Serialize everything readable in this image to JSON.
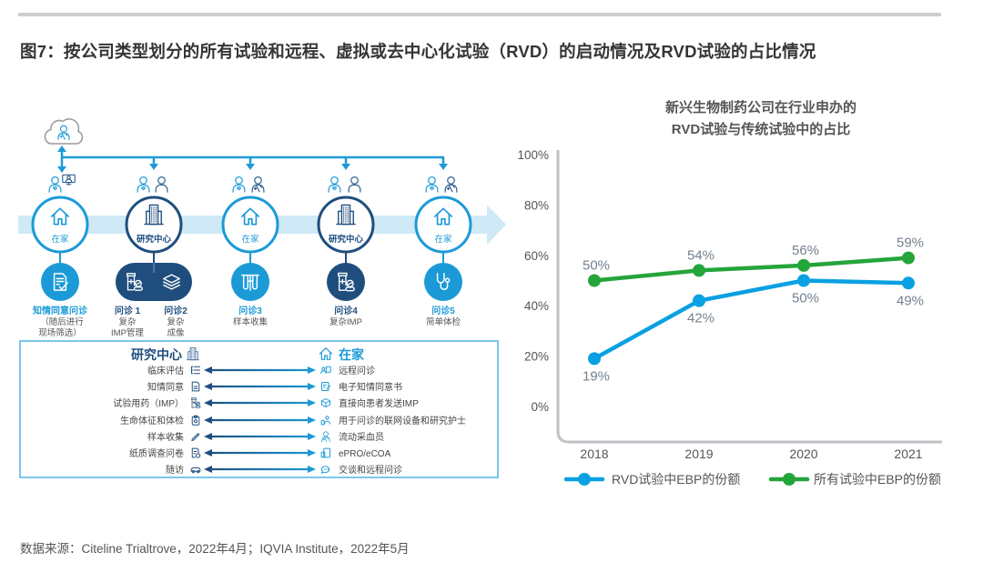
{
  "header": {
    "title": "图7：按公司类型划分的所有试验和远程、虚拟或去中心化试验（RVD）的启动情况及RVD试验的占比情况"
  },
  "diagram": {
    "remote_hub_icon": "cloud-doctor-icon",
    "nodes": [
      {
        "location": "在家",
        "location_icon": "house-icon",
        "people_icons": [
          "patient-icon",
          "video-call-icon"
        ],
        "visits": [
          {
            "title": "知情同意问诊",
            "details": [
              "（随后进行",
              "现场筛选）"
            ],
            "icon": "consent-form-icon"
          }
        ]
      },
      {
        "location": "研究中心",
        "location_icon": "building-icon",
        "people_icons": [
          "patient-icon",
          "person-icon"
        ],
        "visits": [
          {
            "title": "问诊 1",
            "details": [
              "复杂",
              "IMP管理"
            ],
            "icon": "medication-icon"
          },
          {
            "title": "问诊2",
            "details": [
              "复杂",
              "成像"
            ],
            "icon": "imaging-layers-icon"
          }
        ]
      },
      {
        "location": "在家",
        "location_icon": "house-icon",
        "people_icons": [
          "patient-icon",
          "doctor-icon"
        ],
        "visits": [
          {
            "title": "问诊3",
            "details": [
              "样本收集"
            ],
            "icon": "test-tubes-icon"
          }
        ]
      },
      {
        "location": "研究中心",
        "location_icon": "building-icon",
        "people_icons": [
          "patient-icon",
          "person-icon"
        ],
        "visits": [
          {
            "title": "问诊4",
            "details": [
              "复杂IMP"
            ],
            "icon": "medication-icon"
          }
        ]
      },
      {
        "location": "在家",
        "location_icon": "house-icon",
        "people_icons": [
          "patient-icon",
          "doctor-icon"
        ],
        "visits": [
          {
            "title": "问诊5",
            "details": [
              "简单体检"
            ],
            "icon": "stethoscope-icon"
          }
        ]
      }
    ]
  },
  "comparison": {
    "left_header": "研究中心",
    "left_header_icon": "building-icon",
    "right_header": "在家",
    "right_header_icon": "house-icon",
    "rows": [
      {
        "left": "临床评估",
        "left_icon": "checklist-icon",
        "right": "远程问诊",
        "right_icon": "video-consult-icon"
      },
      {
        "left": "知情同意",
        "left_icon": "document-icon",
        "right": "电子知情同意书",
        "right_icon": "tablet-signature-icon"
      },
      {
        "left": "试验用药（IMP）",
        "left_icon": "medication-icon",
        "right": "直接向患者发送IMP",
        "right_icon": "package-icon"
      },
      {
        "left": "生命体征和体检",
        "left_icon": "clipboard-icon",
        "right": "用于问诊的联网设备和研究护士",
        "right_icon": "nurse-device-icon"
      },
      {
        "left": "样本收集",
        "left_icon": "pen-icon",
        "right": "流动采血员",
        "right_icon": "phlebotomist-icon"
      },
      {
        "left": "纸质调查问卷",
        "left_icon": "paper-survey-icon",
        "right": "ePRO/eCOA",
        "right_icon": "tablet-icon"
      },
      {
        "left": "随访",
        "left_icon": "car-icon",
        "right": "交谈和远程问诊",
        "right_icon": "chat-icon"
      }
    ]
  },
  "chart_data": {
    "type": "line",
    "title": [
      "新兴生物制药公司在行业申办的",
      "RVD试验与传统试验中的占比"
    ],
    "categories": [
      "2018",
      "2019",
      "2020",
      "2021"
    ],
    "series": [
      {
        "name": "RVD试验中EBP的份额",
        "values": [
          19,
          42,
          50,
          49
        ],
        "labels": [
          "19%",
          "42%",
          "50%",
          "49%"
        ],
        "color": "#0aa0e2",
        "label_position": "below"
      },
      {
        "name": "所有试验中EBP的份额",
        "values": [
          50,
          54,
          56,
          59
        ],
        "labels": [
          "50%",
          "54%",
          "56%",
          "59%"
        ],
        "color": "#24a53a",
        "label_position": "above"
      }
    ],
    "xlabel": "",
    "ylabel": "",
    "ylim": [
      0,
      100
    ],
    "y_ticks": [
      0,
      20,
      40,
      60,
      80,
      100
    ],
    "y_tick_labels": [
      "0%",
      "20%",
      "40%",
      "60%",
      "80%",
      "100%"
    ],
    "unit": "%",
    "grid": false,
    "legend": "bottom"
  },
  "footer": {
    "source": "数据来源：Citeline Trialtrove，2022年4月；IQVIA Institute，2022年5月"
  },
  "colors": {
    "primary_blue": "#1b9ad7",
    "navy": "#1f4e7e",
    "band": "#cfe9f7",
    "chart_blue": "#0aa0e2",
    "chart_green": "#24a53a",
    "axis": "#c0c2c7"
  }
}
